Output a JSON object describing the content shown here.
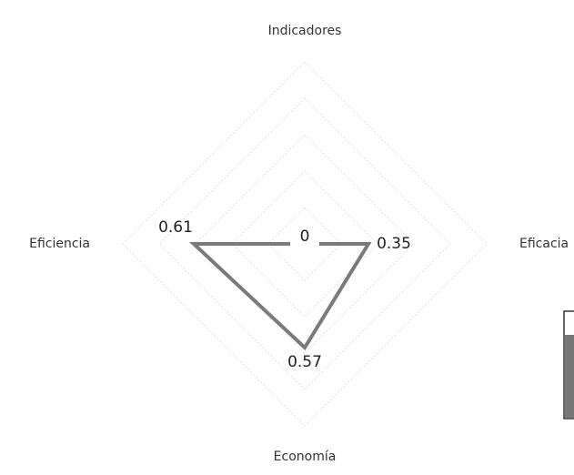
{
  "chart_data": {
    "type": "radar",
    "categories": [
      "Indicadores",
      "Eficacia",
      "Economía",
      "Eficiencia"
    ],
    "series": [
      {
        "color": "#7a7a7a",
        "values": [
          0,
          0.35,
          0.57,
          0.61
        ]
      }
    ],
    "ylim": [
      0,
      1
    ],
    "yticks": [
      0.2,
      0.4,
      0.6,
      0.8,
      1
    ],
    "grid": true
  }
}
